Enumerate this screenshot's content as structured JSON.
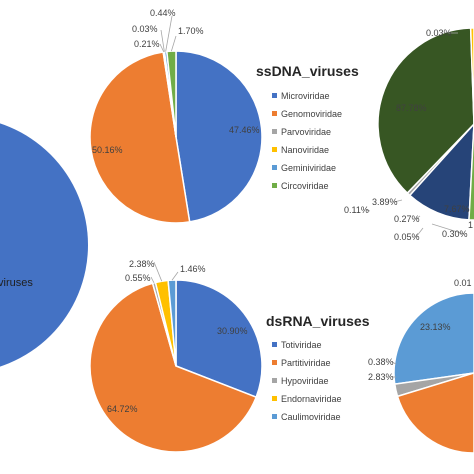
{
  "colors": {
    "blue": "#4472c4",
    "orange": "#ed7d31",
    "gray": "#a5a5a5",
    "gold": "#ffc000",
    "lightblue": "#5b9bd5",
    "green": "#70ad47",
    "darkgreen": "#375623",
    "darkblue": "#264478"
  },
  "chart_data": [
    {
      "type": "pie",
      "title": "ssDNA_viruses",
      "categories": [
        "Microviridae",
        "Genomoviridae",
        "Parvoviridae",
        "Nanoviridae",
        "Geminiviridae",
        "Circoviridae"
      ],
      "values": [
        47.46,
        50.16,
        0.21,
        0.03,
        0.44,
        1.7
      ],
      "labels": [
        "47.46%",
        "50.16%",
        "0.21%",
        "0.03%",
        "0.44%",
        "1.70%"
      ],
      "legend_position": "right"
    },
    {
      "type": "pie",
      "title": "dsRNA_viruses",
      "categories": [
        "Totiviridae",
        "Partitiviridae",
        "Hypoviridae",
        "Endornaviridae",
        "Caulimoviridae"
      ],
      "values": [
        30.9,
        64.72,
        0.55,
        2.38,
        1.46
      ],
      "labels": [
        "30.90%",
        "64.72%",
        "0.55%",
        "2.38%",
        "1.46%"
      ],
      "legend_position": "right"
    },
    {
      "type": "pie",
      "title": "",
      "note": "left large pie, mostly cropped",
      "visible_text": [
        "viruses"
      ]
    },
    {
      "type": "pie",
      "title": "",
      "note": "top-right pie, partially cropped",
      "visible_labels": [
        "0.03%",
        "87.78%",
        "7.67%",
        "3.89%",
        "0.11%",
        "0.27%",
        "0.05%",
        "0.30%",
        "1"
      ]
    },
    {
      "type": "pie",
      "title": "",
      "note": "bottom-right pie, partially cropped",
      "visible_labels": [
        "0.01",
        "23.13%",
        "0.38%",
        "2.83%"
      ]
    }
  ],
  "left_pie": {
    "label": "viruses"
  }
}
